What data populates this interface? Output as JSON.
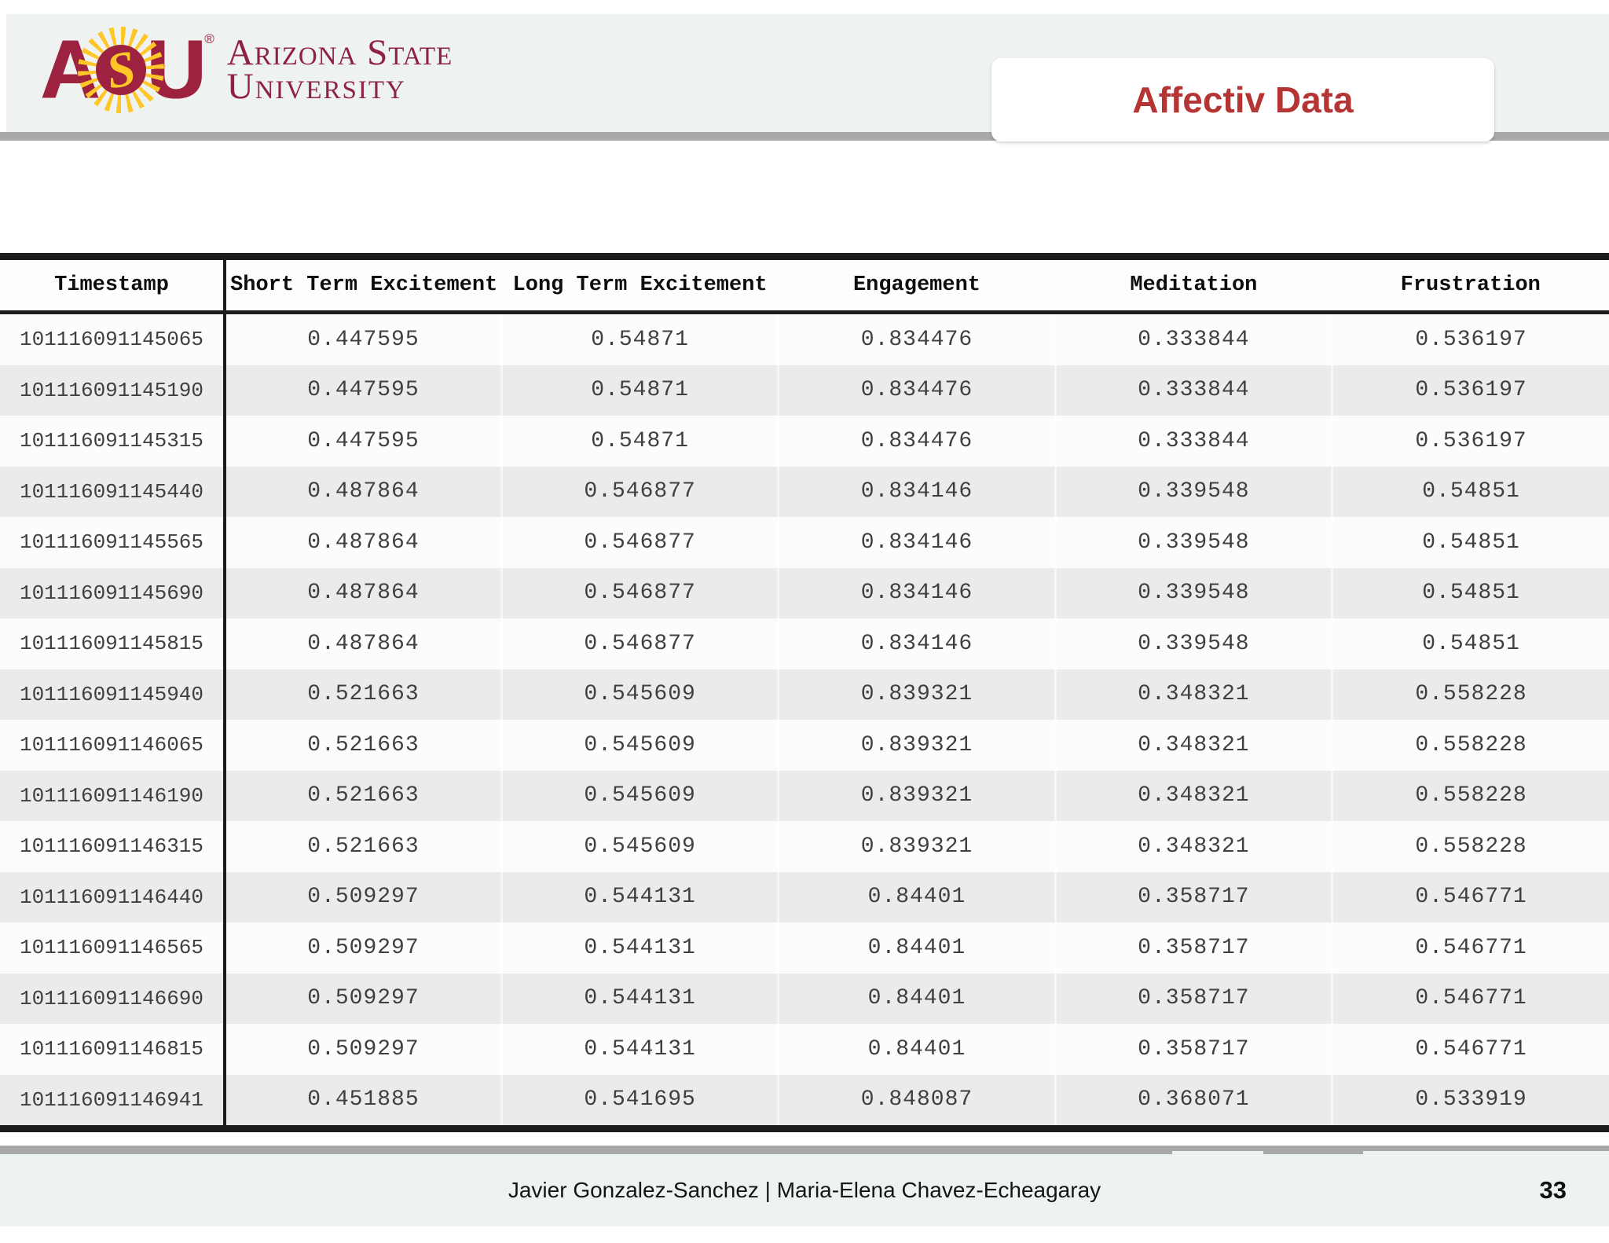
{
  "slide": {
    "logo": {
      "letter_a": "A",
      "letter_s": "S",
      "letter_u": "U",
      "registered": "®",
      "wordmark_line1": "Arizona State",
      "wordmark_line2": "University"
    },
    "title": "Affectiv Data",
    "authors": "Javier Gonzalez-Sanchez | Maria-Elena Chavez-Echeagaray",
    "page_number": "33"
  },
  "table": {
    "columns": [
      "Timestamp",
      "Short Term Excitement",
      "Long Term Excitement",
      "Engagement",
      "Meditation",
      "Frustration"
    ],
    "rows": [
      [
        "101116091145065",
        "0.447595",
        "0.54871",
        "0.834476",
        "0.333844",
        "0.536197"
      ],
      [
        "101116091145190",
        "0.447595",
        "0.54871",
        "0.834476",
        "0.333844",
        "0.536197"
      ],
      [
        "101116091145315",
        "0.447595",
        "0.54871",
        "0.834476",
        "0.333844",
        "0.536197"
      ],
      [
        "101116091145440",
        "0.487864",
        "0.546877",
        "0.834146",
        "0.339548",
        "0.54851"
      ],
      [
        "101116091145565",
        "0.487864",
        "0.546877",
        "0.834146",
        "0.339548",
        "0.54851"
      ],
      [
        "101116091145690",
        "0.487864",
        "0.546877",
        "0.834146",
        "0.339548",
        "0.54851"
      ],
      [
        "101116091145815",
        "0.487864",
        "0.546877",
        "0.834146",
        "0.339548",
        "0.54851"
      ],
      [
        "101116091145940",
        "0.521663",
        "0.545609",
        "0.839321",
        "0.348321",
        "0.558228"
      ],
      [
        "101116091146065",
        "0.521663",
        "0.545609",
        "0.839321",
        "0.348321",
        "0.558228"
      ],
      [
        "101116091146190",
        "0.521663",
        "0.545609",
        "0.839321",
        "0.348321",
        "0.558228"
      ],
      [
        "101116091146315",
        "0.521663",
        "0.545609",
        "0.839321",
        "0.348321",
        "0.558228"
      ],
      [
        "101116091146440",
        "0.509297",
        "0.544131",
        "0.84401",
        "0.358717",
        "0.546771"
      ],
      [
        "101116091146565",
        "0.509297",
        "0.544131",
        "0.84401",
        "0.358717",
        "0.546771"
      ],
      [
        "101116091146690",
        "0.509297",
        "0.544131",
        "0.84401",
        "0.358717",
        "0.546771"
      ],
      [
        "101116091146815",
        "0.509297",
        "0.544131",
        "0.84401",
        "0.358717",
        "0.546771"
      ],
      [
        "101116091146941",
        "0.451885",
        "0.541695",
        "0.848087",
        "0.368071",
        "0.533919"
      ]
    ]
  },
  "colors": {
    "maroon": "#9d2240",
    "gold": "#ffc627",
    "title_red": "#b53434",
    "bar_gray": "#a9a9a9",
    "band_gray_green": "#eef2f0",
    "footer_band": "#ecf3f1",
    "zebra_gray": "#ebebec",
    "table_border": "#1c1c1c"
  }
}
